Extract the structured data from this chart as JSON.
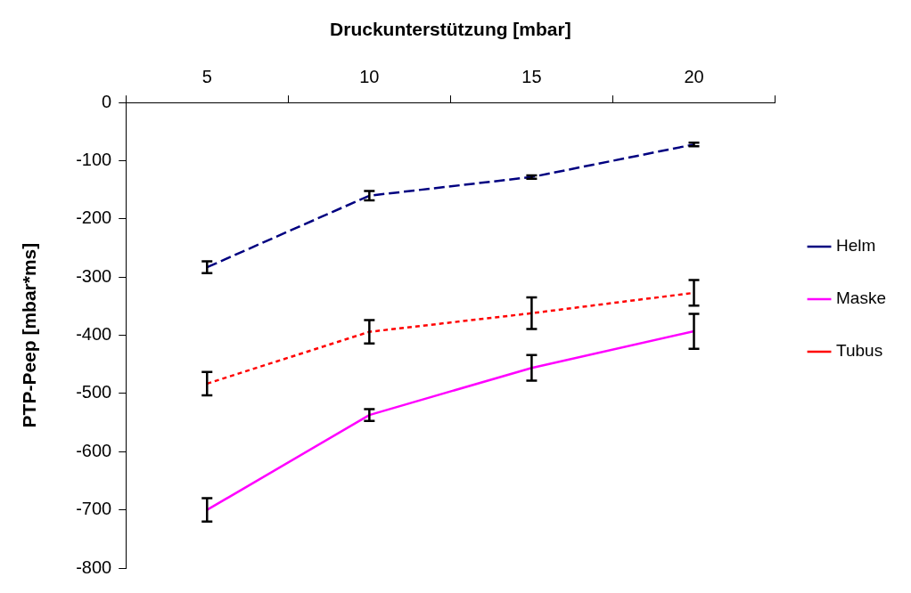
{
  "chart_data": {
    "type": "line",
    "xlabel": "Druckunterstützung [mbar]",
    "ylabel": "PTP-Peep [mbar*ms]",
    "categories": [
      "5",
      "10",
      "15",
      "20"
    ],
    "series": [
      {
        "name": "Helm",
        "color": "#000080",
        "line_style": "dashed",
        "values": [
          -283,
          -160,
          -128,
          -72
        ],
        "errors": [
          10,
          8,
          3,
          3
        ]
      },
      {
        "name": "Maske",
        "color": "#ff00ff",
        "line_style": "solid",
        "values": [
          -700,
          -537,
          -456,
          -393
        ],
        "errors": [
          20,
          10,
          22,
          30
        ]
      },
      {
        "name": "Tubus",
        "color": "#ff0000",
        "line_style": "dotted",
        "values": [
          -483,
          -394,
          -362,
          -327
        ],
        "errors": [
          20,
          20,
          27,
          22
        ]
      }
    ],
    "ylim": [
      -800,
      0
    ],
    "yticks": [
      0,
      -100,
      -200,
      -300,
      -400,
      -500,
      -600,
      -700,
      -800
    ],
    "grid": false,
    "legend": "right"
  }
}
